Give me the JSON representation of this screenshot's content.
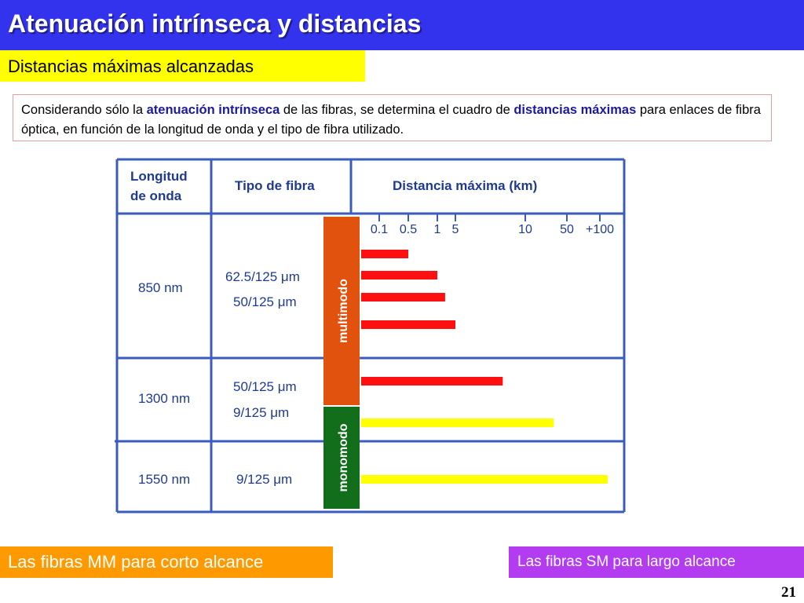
{
  "slide": {
    "title": "Atenuación intrínseca y distancias",
    "subtitle": "Distancias máximas alcanzadas",
    "page_number": "21"
  },
  "description": {
    "t1": "Considerando sólo la ",
    "b1": "atenuación intrínseca",
    "t2": " de las fibras, se determina el cuadro de ",
    "b2": "distancias máximas",
    "t3": " para enlaces de fibra óptica, en función de la longitud de onda y  el tipo de fibra utilizado."
  },
  "table": {
    "headers": {
      "wavelength": "Longitud de onda",
      "fiber_type": "Tipo de fibra",
      "max_distance": "Distancia máxima (km)"
    },
    "scale_ticks": [
      "0.1",
      "0.5",
      "1",
      "5",
      "10",
      "50",
      "+100"
    ],
    "rows": [
      {
        "wavelength": "850 nm",
        "fibers": [
          "62.5/125 μm",
          "50/125 μm"
        ]
      },
      {
        "wavelength": "1300 nm",
        "fibers": [
          "50/125 μm",
          "9/125 μm"
        ]
      },
      {
        "wavelength": "1550 nm",
        "fibers": [
          "9/125 μm"
        ]
      }
    ],
    "mode_labels": {
      "multimode": "multimodo",
      "singlemode": "monomodo"
    },
    "colors": {
      "multimode": "#e2520f",
      "singlemode": "#126e1a",
      "multimode_bar": "#ff1010",
      "singlemode_bar": "#ffff00",
      "grid": "#3a5bbf",
      "text": "#1f3a93"
    }
  },
  "chart_data": {
    "type": "bar",
    "xlabel": "Distancia máxima (km)",
    "x_scale": "log",
    "x_ticks": [
      "0.1",
      "0.5",
      "1",
      "5",
      "10",
      "50",
      "+100"
    ],
    "bars": [
      {
        "wavelength": "850 nm",
        "mode": "multimodo",
        "value": 0.5
      },
      {
        "wavelength": "850 nm",
        "mode": "multimodo",
        "value": 1
      },
      {
        "wavelength": "850 nm",
        "mode": "multimodo",
        "value": 2
      },
      {
        "wavelength": "850 nm",
        "mode": "multimodo",
        "value": 5
      },
      {
        "wavelength": "1300 nm",
        "mode": "multimodo",
        "value": 8
      },
      {
        "wavelength": "1300 nm",
        "mode": "monomodo",
        "value": 30
      },
      {
        "wavelength": "1550 nm",
        "mode": "monomodo",
        "value": 100
      }
    ]
  },
  "footer": {
    "left": "Las fibras MM para corto alcance",
    "right": "Las fibras SM para largo alcance",
    "left_color": "#ff9900",
    "right_color": "#b43cf0"
  }
}
